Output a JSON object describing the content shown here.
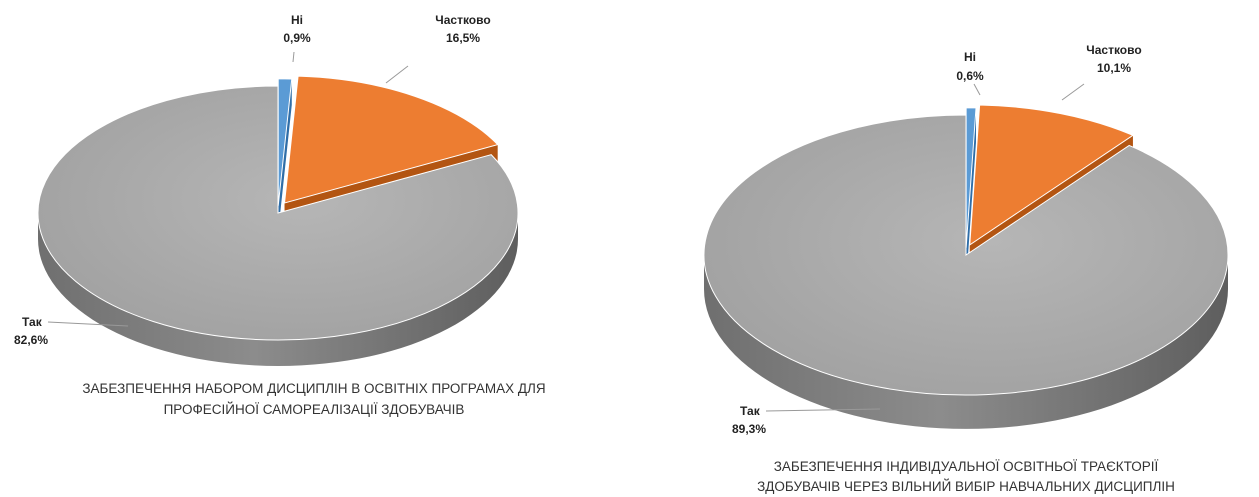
{
  "chart_data": [
    {
      "type": "pie",
      "categories": [
        "Ні",
        "Частково",
        "Так"
      ],
      "values": [
        0.9,
        16.5,
        82.6
      ],
      "value_labels": [
        "0,9%",
        "16,5%",
        "82,6%"
      ],
      "colors": [
        "#5b9bd5",
        "#ed7d31",
        "#a5a5a5"
      ],
      "exploded": [
        "Ні",
        "Частково"
      ],
      "title_lines": [
        "ЗАБЕЗПЕЧЕННЯ НАБОРОМ ДИСЦИПЛІН В ОСВІТНІХ ПРОГРАМАХ  ДЛЯ",
        "ПРОФЕСІЙНОЇ САМОРЕАЛІЗАЦІЇ ЗДОБУВАЧІВ"
      ]
    },
    {
      "type": "pie",
      "categories": [
        "Ні",
        "Частково",
        "Так"
      ],
      "values": [
        0.6,
        10.1,
        89.3
      ],
      "value_labels": [
        "0,6%",
        "10,1%",
        "89,3%"
      ],
      "colors": [
        "#5b9bd5",
        "#ed7d31",
        "#a5a5a5"
      ],
      "exploded": [
        "Ні",
        "Частково"
      ],
      "title_lines": [
        "ЗАБЕЗПЕЧЕННЯ ІНДИВІДУАЛЬНОЇ ОСВІТНЬОЇ ТРАЄКТОРІЇ",
        "ЗДОБУВАЧІВ ЧЕРЕЗ ВІЛЬНИЙ ВИБІР НАВЧАЛЬНИХ ДИСЦИПЛІН"
      ]
    }
  ]
}
